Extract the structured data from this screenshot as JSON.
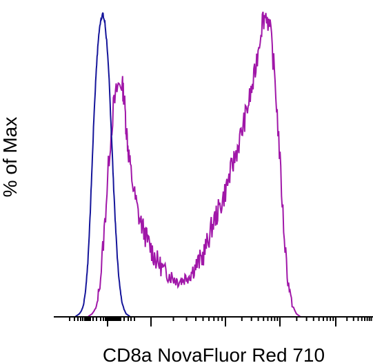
{
  "chart_data": {
    "type": "line",
    "title": "",
    "xlabel": "CD8a NovaFluor Red 710",
    "ylabel": "% of Max",
    "x_scale": "biexponential (log-like)",
    "xlim": [
      0,
      100
    ],
    "ylim": [
      0,
      100
    ],
    "grid": false,
    "legend": "none",
    "series": [
      {
        "color": "#14149a",
        "x": [
          10,
          11,
          12,
          13,
          14,
          15,
          16,
          17,
          18,
          19,
          20,
          21,
          22,
          23,
          24,
          25,
          26,
          27,
          28,
          29,
          30,
          31,
          32,
          33,
          34,
          35,
          36,
          37,
          38,
          39,
          40
        ],
        "y": [
          0,
          0.5,
          1,
          2,
          4,
          9,
          18,
          32,
          50,
          68,
          82,
          92,
          98,
          100,
          97,
          90,
          78,
          62,
          45,
          30,
          18,
          10,
          5,
          2.5,
          1,
          0.5,
          0,
          0,
          0,
          0,
          0
        ]
      },
      {
        "color": "#a017a8",
        "x": [
          10,
          13,
          16,
          18,
          20,
          22,
          24,
          26,
          28,
          30,
          32,
          33,
          34,
          35,
          36,
          38,
          40,
          42,
          44,
          46,
          48,
          50,
          52,
          54,
          56,
          58,
          60,
          62,
          64,
          66,
          68,
          70,
          72,
          74,
          76,
          78,
          80,
          82,
          84,
          86,
          88,
          90,
          92,
          94,
          96,
          98,
          100
        ],
        "y": [
          0,
          0,
          0,
          1,
          3,
          13,
          31,
          53,
          69,
          76,
          77,
          73,
          63,
          55,
          49,
          40,
          33,
          29,
          25,
          22,
          19,
          17,
          15,
          14,
          13,
          12,
          12,
          13,
          14,
          16,
          18,
          20,
          24,
          29,
          33,
          36,
          40,
          45,
          50,
          55,
          60,
          66,
          72,
          78,
          88,
          98,
          100
        ]
      }
    ],
    "series2_tail": {
      "x": [
        100,
        102,
        104,
        106,
        108,
        110,
        112,
        114,
        116,
        120,
        130,
        140,
        150
      ],
      "y": [
        100,
        93,
        78,
        55,
        30,
        12,
        4,
        1,
        0,
        0,
        0,
        0,
        0
      ]
    }
  }
}
